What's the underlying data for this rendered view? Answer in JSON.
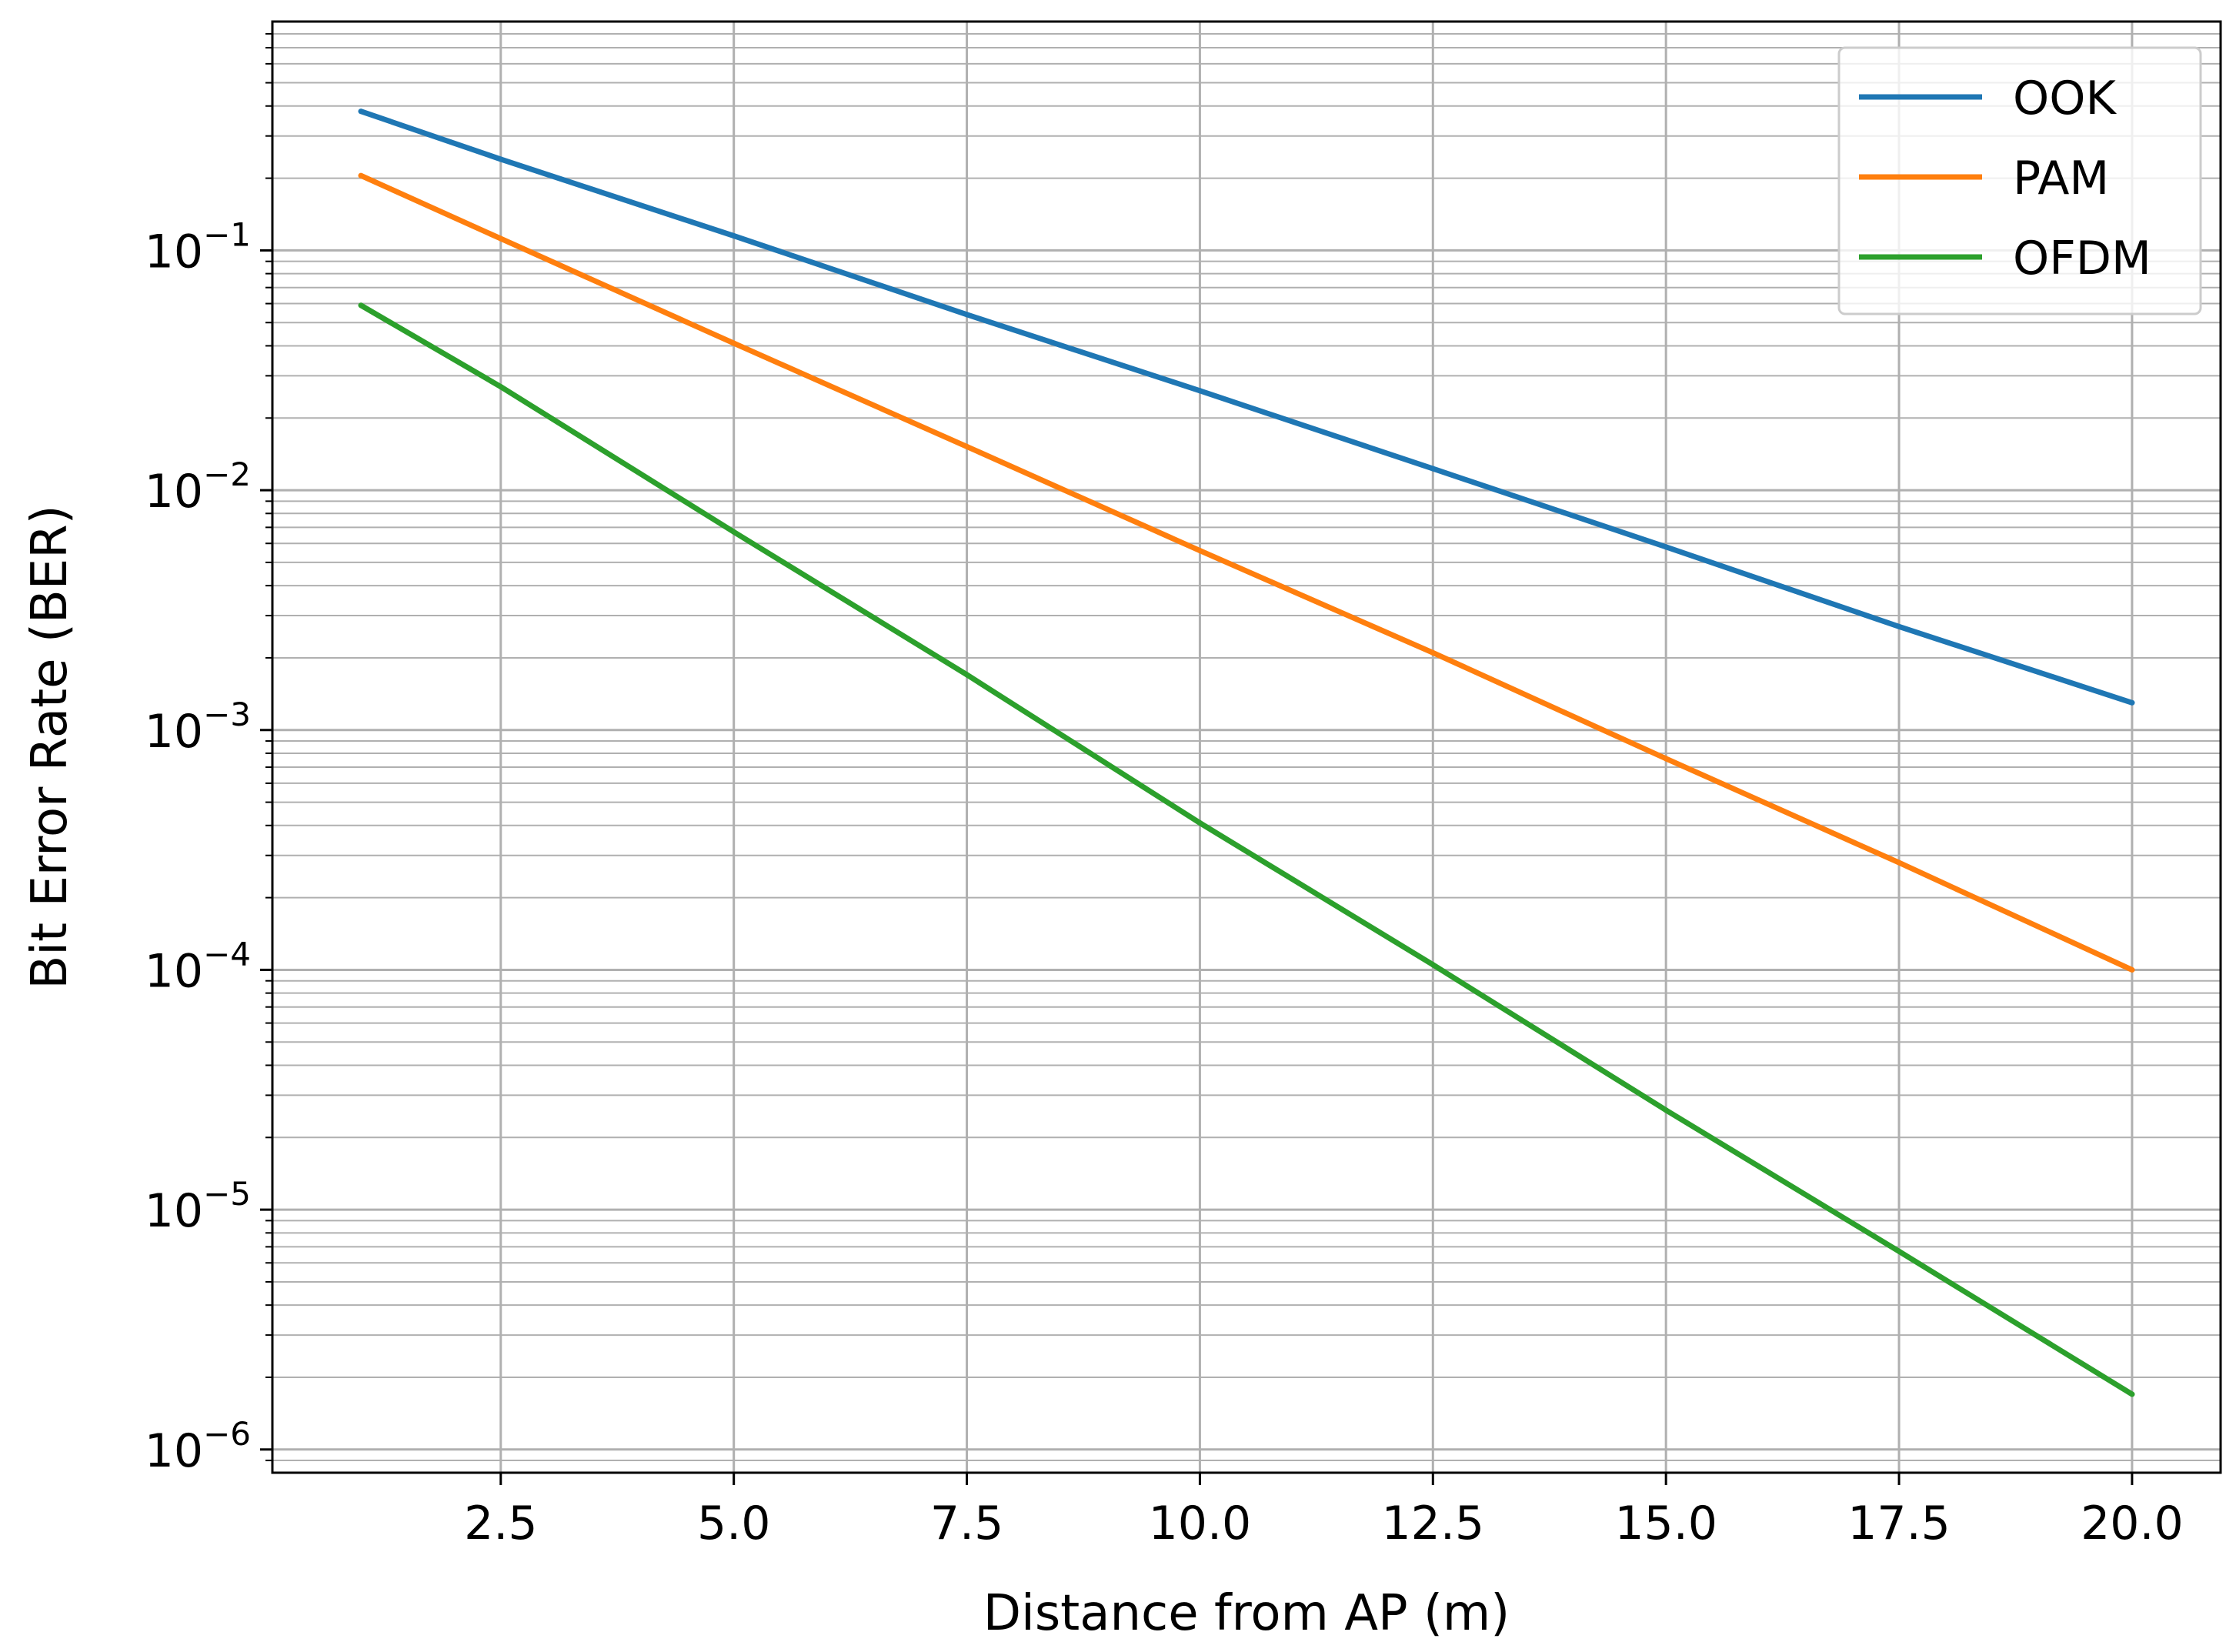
{
  "chart_data": {
    "type": "line",
    "xlabel": "Distance from AP (m)",
    "ylabel": "Bit Error Rate (BER)",
    "yscale": "log",
    "xlim": [
      0.05,
      20.95
    ],
    "ylim": [
      8e-07,
      0.9
    ],
    "grid": true,
    "grid_minor_y": true,
    "legend_position": "top-right",
    "x_ticks": [
      {
        "value": 2.5,
        "label": "2.5"
      },
      {
        "value": 5.0,
        "label": "5.0"
      },
      {
        "value": 7.5,
        "label": "7.5"
      },
      {
        "value": 10.0,
        "label": "10.0"
      },
      {
        "value": 12.5,
        "label": "12.5"
      },
      {
        "value": 15.0,
        "label": "15.0"
      },
      {
        "value": 17.5,
        "label": "17.5"
      },
      {
        "value": 20.0,
        "label": "20.0"
      }
    ],
    "y_ticks": [
      {
        "value": 0.1,
        "base": "10",
        "exp": "−1"
      },
      {
        "value": 0.01,
        "base": "10",
        "exp": "−2"
      },
      {
        "value": 0.001,
        "base": "10",
        "exp": "−3"
      },
      {
        "value": 0.0001,
        "base": "10",
        "exp": "−4"
      },
      {
        "value": 1e-05,
        "base": "10",
        "exp": "−5"
      },
      {
        "value": 1e-06,
        "base": "10",
        "exp": "−6"
      }
    ],
    "x": [
      1,
      2.5,
      5,
      7.5,
      10,
      12.5,
      15,
      17.5,
      20
    ],
    "series": [
      {
        "name": "OOK",
        "color": "#1f77b4",
        "values": [
          0.38,
          0.24,
          0.115,
          0.054,
          0.026,
          0.0123,
          0.0058,
          0.0027,
          0.0013
        ]
      },
      {
        "name": "PAM",
        "color": "#ff7f0e",
        "values": [
          0.205,
          0.112,
          0.041,
          0.0152,
          0.0056,
          0.0021,
          0.00076,
          0.00028,
          0.0001
        ]
      },
      {
        "name": "OFDM",
        "color": "#2ca02c",
        "values": [
          0.059,
          0.027,
          0.0067,
          0.0017,
          0.00041,
          0.000105,
          2.6e-05,
          6.7e-06,
          1.7e-06
        ]
      }
    ]
  }
}
